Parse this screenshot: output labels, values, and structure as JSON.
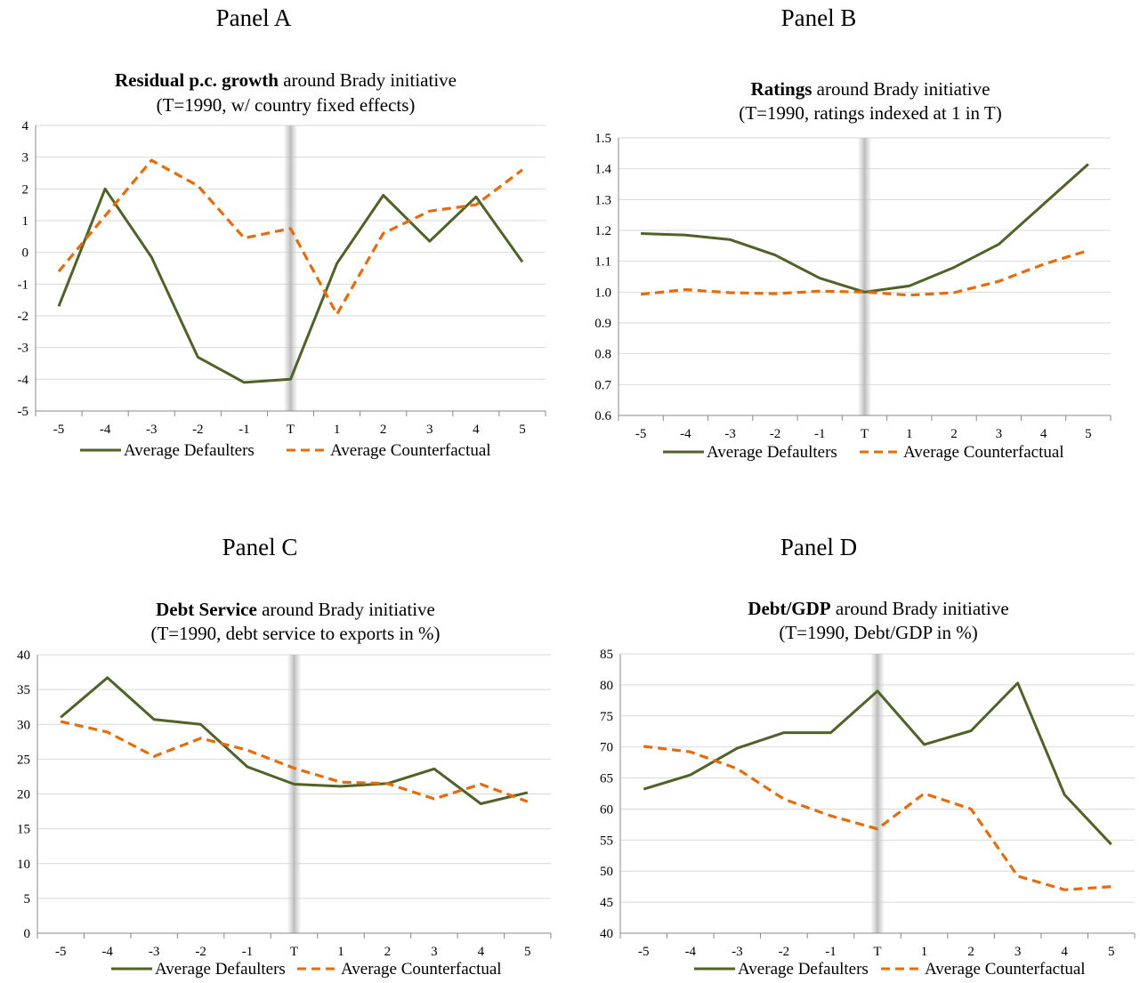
{
  "panels": [
    {
      "label": "Panel A",
      "chart_data": {
        "type": "line",
        "title_bold": "Residual p.c. growth",
        "title_rest": " around Brady initiative",
        "subtitle": "(T=1990, w/ country fixed effects)",
        "categories": [
          "-5",
          "-4",
          "-3",
          "-2",
          "-1",
          "T",
          "1",
          "2",
          "3",
          "4",
          "5"
        ],
        "ylim": [
          -5,
          4
        ],
        "yticks": [
          4,
          3,
          2,
          1,
          0,
          -1,
          -2,
          -3,
          -4,
          -5
        ],
        "series": [
          {
            "name": "Average Defaulters",
            "color": "#4f6228",
            "dash": "solid",
            "values": [
              -1.7,
              2.0,
              -0.15,
              -3.3,
              -4.1,
              -4.0,
              -0.35,
              1.8,
              0.35,
              1.75,
              -0.3
            ]
          },
          {
            "name": "Average Counterfactual",
            "color": "#e46c0a",
            "dash": "dashed",
            "values": [
              -0.6,
              1.15,
              2.9,
              2.1,
              0.45,
              0.75,
              -1.95,
              0.6,
              1.3,
              1.5,
              2.6
            ]
          }
        ]
      }
    },
    {
      "label": "Panel B",
      "chart_data": {
        "type": "line",
        "title_bold": "Ratings",
        "title_rest": " around Brady initiative",
        "subtitle": "(T=1990, ratings indexed at 1 in T)",
        "categories": [
          "-5",
          "-4",
          "-3",
          "-2",
          "-1",
          "T",
          "1",
          "2",
          "3",
          "4",
          "5"
        ],
        "ylim": [
          0.6,
          1.5
        ],
        "yticks": [
          "1.5",
          "1.4",
          "1.3",
          "1.2",
          "1.1",
          "1.0",
          "0.9",
          "0.8",
          "0.7",
          "0.6"
        ],
        "series": [
          {
            "name": "Average Defaulters",
            "color": "#4f6228",
            "dash": "solid",
            "values": [
              1.19,
              1.185,
              1.17,
              1.12,
              1.045,
              1.0,
              1.02,
              1.08,
              1.155,
              1.285,
              1.415
            ]
          },
          {
            "name": "Average Counterfactual",
            "color": "#e46c0a",
            "dash": "dashed",
            "values": [
              0.993,
              1.008,
              0.998,
              0.995,
              1.003,
              1.0,
              0.99,
              0.998,
              1.035,
              1.09,
              1.135
            ]
          }
        ]
      }
    },
    {
      "label": "Panel C",
      "chart_data": {
        "type": "line",
        "title_bold": "Debt Service",
        "title_rest": " around Brady initiative",
        "subtitle": "(T=1990, debt service to exports in %)",
        "categories": [
          "-5",
          "-4",
          "-3",
          "-2",
          "-1",
          "T",
          "1",
          "2",
          "3",
          "4",
          "5"
        ],
        "ylim": [
          0,
          40
        ],
        "yticks": [
          40,
          35,
          30,
          25,
          20,
          15,
          10,
          5,
          0
        ],
        "series": [
          {
            "name": "Average Defaulters",
            "color": "#4f6228",
            "dash": "solid",
            "values": [
              31.0,
              36.7,
              30.7,
              30.0,
              23.9,
              21.4,
              21.1,
              21.5,
              23.6,
              18.6,
              20.2
            ]
          },
          {
            "name": "Average Counterfactual",
            "color": "#e46c0a",
            "dash": "dashed",
            "values": [
              30.4,
              28.9,
              25.4,
              28.0,
              26.3,
              23.7,
              21.7,
              21.5,
              19.3,
              21.4,
              18.9
            ]
          }
        ]
      }
    },
    {
      "label": "Panel D",
      "chart_data": {
        "type": "line",
        "title_bold": "Debt/GDP",
        "title_rest": " around Brady initiative",
        "subtitle": "(T=1990, Debt/GDP in %)",
        "categories": [
          "-5",
          "-4",
          "-3",
          "-2",
          "-1",
          "T",
          "1",
          "2",
          "3",
          "4",
          "5"
        ],
        "ylim": [
          40,
          85
        ],
        "yticks": [
          85,
          80,
          75,
          70,
          65,
          60,
          55,
          50,
          45,
          40
        ],
        "series": [
          {
            "name": "Average Defaulters",
            "color": "#4f6228",
            "dash": "solid",
            "values": [
              63.2,
              65.5,
              69.8,
              72.3,
              72.3,
              79.0,
              70.4,
              72.6,
              80.3,
              62.3,
              54.3
            ]
          },
          {
            "name": "Average Counterfactual",
            "color": "#e46c0a",
            "dash": "dashed",
            "values": [
              70.1,
              69.2,
              66.5,
              61.6,
              58.9,
              56.8,
              62.5,
              60.0,
              49.2,
              47.0,
              47.5
            ]
          }
        ]
      }
    }
  ]
}
